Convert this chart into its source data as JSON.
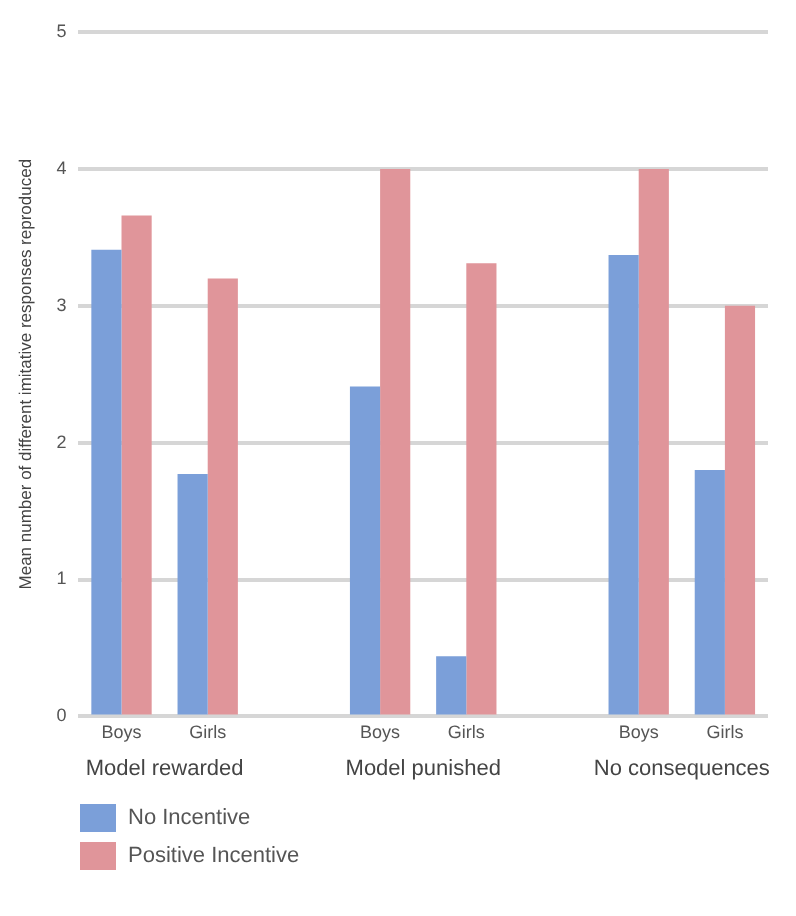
{
  "chart_data": {
    "type": "bar",
    "ylabel": "Mean number of different imitative responses reproduced",
    "categories": [
      "Boys",
      "Girls",
      null,
      "Boys",
      "Girls",
      null,
      "Boys",
      "Girls"
    ],
    "series": [
      {
        "name": "No Incentive",
        "color": "#7b9fd9",
        "values": [
          3.41,
          1.77,
          null,
          2.41,
          0.44,
          null,
          3.37,
          1.8
        ]
      },
      {
        "name": "Positive Incentive",
        "color": "#e0959a",
        "values": [
          3.66,
          3.2,
          null,
          4.0,
          3.31,
          null,
          4.0,
          3.0
        ]
      }
    ],
    "annotations": [
      "Model rewarded",
      "Model punished",
      "No consequences"
    ],
    "ylim": [
      0,
      5
    ],
    "yticks": [
      0,
      1,
      2,
      3,
      4,
      5
    ],
    "grid": "y",
    "legend": "bottom left"
  }
}
